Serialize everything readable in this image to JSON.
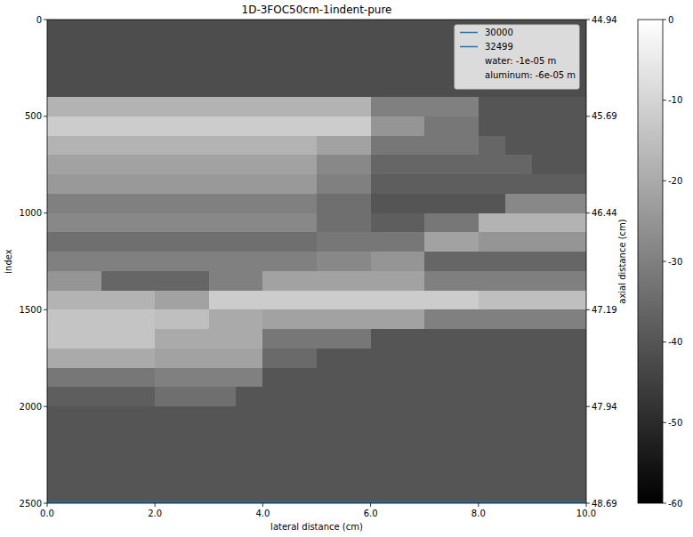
{
  "chart_data": {
    "type": "heatmap",
    "title": "1D-3FOC50cm-1indent-pure",
    "x_label": "lateral distance (cm)",
    "y_label": "index",
    "y2_label": "axial distance (cm)",
    "xlim": [
      0,
      10
    ],
    "ylim": [
      2500,
      0
    ],
    "xticks": [
      {
        "value": 0,
        "label": "0.0"
      },
      {
        "value": 2,
        "label": "2.0"
      },
      {
        "value": 4,
        "label": "4.0"
      },
      {
        "value": 6,
        "label": "6.0"
      },
      {
        "value": 8,
        "label": "8.0"
      },
      {
        "value": 10,
        "label": "10.0"
      }
    ],
    "yticks": [
      0,
      500,
      1000,
      1500,
      2000,
      2500
    ],
    "y2lim": [
      48.69,
      44.94
    ],
    "y2ticks": [
      44.94,
      45.69,
      46.44,
      47.19,
      47.94,
      48.69
    ],
    "x": [
      0,
      10
    ],
    "series": [
      {
        "name": "30000",
        "color": "#1f77b4",
        "values": [
          2495,
          2495
        ]
      },
      {
        "name": "32499",
        "color": "#1f77b4",
        "values": [
          2499,
          2499
        ]
      }
    ],
    "annotations": [
      "water: -1e-05 m",
      "aluminum: -6e-05 m"
    ],
    "legend": "upper right",
    "colorbar": {
      "range": [
        -60,
        0
      ],
      "ticks": [
        0,
        -10,
        -20,
        -30,
        -40,
        -50,
        -60
      ]
    },
    "cells": [
      [
        -42,
        -42,
        -42,
        -42,
        -42,
        -42,
        -42,
        -42,
        -42,
        -42,
        -42,
        -42,
        -42,
        -42,
        -42,
        -42,
        -42,
        -42,
        -42,
        -42
      ],
      [
        -42,
        -42,
        -42,
        -42,
        -42,
        -42,
        -42,
        -42,
        -42,
        -42,
        -42,
        -42,
        -42,
        -42,
        -42,
        -42,
        -42,
        -42,
        -42,
        -42
      ],
      [
        -42,
        -42,
        -42,
        -42,
        -42,
        -42,
        -42,
        -42,
        -42,
        -42,
        -42,
        -42,
        -42,
        -42,
        -42,
        -42,
        -42,
        -42,
        -42,
        -42
      ],
      [
        -42,
        -42,
        -42,
        -42,
        -42,
        -42,
        -42,
        -42,
        -42,
        -42,
        -42,
        -42,
        -42,
        -42,
        -42,
        -42,
        -42,
        -42,
        -42,
        -42
      ],
      [
        -18,
        -18,
        -18,
        -18,
        -18,
        -18,
        -18,
        -18,
        -18,
        -18,
        -18,
        -18,
        -30,
        -30,
        -30,
        -30,
        -40,
        -40,
        -40,
        -40
      ],
      [
        -12,
        -12,
        -12,
        -12,
        -12,
        -12,
        -12,
        -12,
        -12,
        -12,
        -12,
        -12,
        -25,
        -25,
        -32,
        -32,
        -40,
        -40,
        -40,
        -40
      ],
      [
        -18,
        -18,
        -18,
        -18,
        -18,
        -18,
        -18,
        -18,
        -18,
        -18,
        -22,
        -22,
        -32,
        -32,
        -32,
        -32,
        -36,
        -40,
        -40,
        -40
      ],
      [
        -22,
        -22,
        -22,
        -22,
        -22,
        -22,
        -22,
        -22,
        -22,
        -22,
        -28,
        -28,
        -36,
        -36,
        -36,
        -36,
        -36,
        -36,
        -40,
        -40
      ],
      [
        -24,
        -24,
        -24,
        -24,
        -24,
        -24,
        -24,
        -24,
        -24,
        -24,
        -30,
        -30,
        -38,
        -38,
        -38,
        -38,
        -38,
        -38,
        -38,
        -38
      ],
      [
        -30,
        -30,
        -30,
        -30,
        -30,
        -30,
        -30,
        -30,
        -30,
        -30,
        -34,
        -34,
        -40,
        -40,
        -40,
        -40,
        -40,
        -28,
        -28,
        -28
      ],
      [
        -28,
        -28,
        -28,
        -28,
        -28,
        -28,
        -28,
        -28,
        -28,
        -28,
        -34,
        -34,
        -38,
        -38,
        -32,
        -32,
        -18,
        -18,
        -18,
        -18
      ],
      [
        -34,
        -34,
        -34,
        -34,
        -34,
        -34,
        -34,
        -34,
        -34,
        -34,
        -32,
        -32,
        -32,
        -32,
        -22,
        -22,
        -25,
        -25,
        -25,
        -25
      ],
      [
        -30,
        -30,
        -30,
        -30,
        -30,
        -30,
        -30,
        -30,
        -30,
        -30,
        -28,
        -28,
        -25,
        -25,
        -36,
        -36,
        -36,
        -36,
        -36,
        -36
      ],
      [
        -25,
        -25,
        -36,
        -36,
        -36,
        -36,
        -30,
        -30,
        -22,
        -22,
        -22,
        -22,
        -22,
        -22,
        -30,
        -30,
        -30,
        -30,
        -30,
        -30
      ],
      [
        -18,
        -18,
        -18,
        -18,
        -22,
        -22,
        -12,
        -12,
        -12,
        -12,
        -12,
        -12,
        -12,
        -12,
        -12,
        -12,
        -15,
        -15,
        -15,
        -15
      ],
      [
        -14,
        -14,
        -14,
        -14,
        -15,
        -15,
        -20,
        -20,
        -22,
        -22,
        -22,
        -22,
        -22,
        -22,
        -30,
        -30,
        -30,
        -30,
        -30,
        -30
      ],
      [
        -14,
        -14,
        -14,
        -14,
        -20,
        -20,
        -20,
        -20,
        -32,
        -32,
        -32,
        -32,
        -40,
        -40,
        -40,
        -40,
        -40,
        -40,
        -40,
        -40
      ],
      [
        -20,
        -20,
        -20,
        -20,
        -22,
        -22,
        -22,
        -22,
        -35,
        -35,
        -40,
        -40,
        -40,
        -40,
        -40,
        -40,
        -40,
        -40,
        -40,
        -40
      ],
      [
        -32,
        -32,
        -32,
        -32,
        -30,
        -30,
        -30,
        -30,
        -40,
        -40,
        -40,
        -40,
        -40,
        -40,
        -40,
        -40,
        -40,
        -40,
        -40,
        -40
      ],
      [
        -38,
        -38,
        -38,
        -38,
        -34,
        -34,
        -34,
        -40,
        -40,
        -40,
        -40,
        -40,
        -40,
        -40,
        -40,
        -40,
        -40,
        -40,
        -40,
        -40
      ],
      [
        -40,
        -40,
        -40,
        -40,
        -40,
        -40,
        -40,
        -40,
        -40,
        -40,
        -40,
        -40,
        -40,
        -40,
        -40,
        -40,
        -40,
        -40,
        -40,
        -40
      ],
      [
        -40,
        -40,
        -40,
        -40,
        -40,
        -40,
        -40,
        -40,
        -40,
        -40,
        -40,
        -40,
        -40,
        -40,
        -40,
        -40,
        -40,
        -40,
        -40,
        -40
      ],
      [
        -40,
        -40,
        -40,
        -40,
        -40,
        -40,
        -40,
        -40,
        -40,
        -40,
        -40,
        -40,
        -40,
        -40,
        -40,
        -40,
        -40,
        -40,
        -40,
        -40
      ],
      [
        -40,
        -40,
        -40,
        -40,
        -40,
        -40,
        -40,
        -40,
        -40,
        -40,
        -40,
        -40,
        -40,
        -40,
        -40,
        -40,
        -40,
        -40,
        -40,
        -40
      ],
      [
        -40,
        -40,
        -40,
        -40,
        -40,
        -40,
        -40,
        -40,
        -40,
        -40,
        -40,
        -40,
        -40,
        -40,
        -40,
        -40,
        -40,
        -40,
        -40,
        -40
      ]
    ]
  }
}
